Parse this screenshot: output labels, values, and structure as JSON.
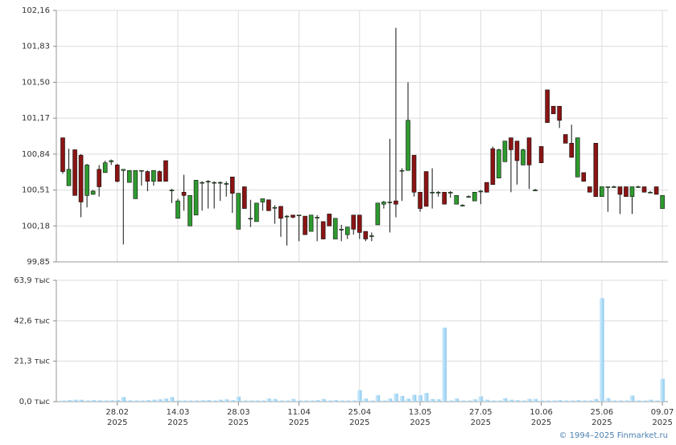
{
  "chart_data": {
    "type": "candlestick",
    "categories": [
      null,
      null,
      null,
      null,
      null,
      null,
      null,
      null,
      null,
      "28.02",
      null,
      null,
      null,
      null,
      null,
      null,
      null,
      null,
      null,
      "14.03",
      null,
      null,
      null,
      null,
      null,
      null,
      null,
      null,
      null,
      "28.03",
      null,
      null,
      null,
      null,
      null,
      null,
      null,
      null,
      null,
      "11.04",
      null,
      null,
      null,
      null,
      null,
      null,
      null,
      null,
      null,
      "25.04",
      null,
      null,
      null,
      null,
      null,
      null,
      null,
      null,
      null,
      "13.05",
      null,
      null,
      null,
      null,
      null,
      null,
      null,
      null,
      null,
      "27.05",
      null,
      null,
      null,
      null,
      null,
      null,
      null,
      null,
      null,
      "10.06",
      null,
      null,
      null,
      null,
      null,
      null,
      null,
      null,
      null,
      "25.06",
      null,
      null,
      null,
      null,
      null,
      null,
      null,
      null,
      null,
      "09.07"
    ],
    "year": "2025",
    "open": [
      100.99,
      100.55,
      100.88,
      100.83,
      100.46,
      100.47,
      100.7,
      100.67,
      100.77,
      100.74,
      100.69,
      100.58,
      100.43,
      100.69,
      100.68,
      100.59,
      100.68,
      100.78,
      100.51,
      100.25,
      100.49,
      100.18,
      100.28,
      100.58,
      100.59,
      100.58,
      100.58,
      100.57,
      100.63,
      100.15,
      100.54,
      100.25,
      100.22,
      100.4,
      100.42,
      100.35,
      100.36,
      100.27,
      100.28,
      100.28,
      100.27,
      100.13,
      100.26,
      100.22,
      100.29,
      100.06,
      100.15,
      100.1,
      100.28,
      100.28,
      100.13,
      100.09,
      100.19,
      100.38,
      100.4,
      100.41,
      100.69,
      100.69,
      100.83,
      100.49,
      100.68,
      100.49,
      100.49,
      100.49,
      100.49,
      100.38,
      100.37,
      100.45,
      100.41,
      100.5,
      100.58,
      100.89,
      100.62,
      100.77,
      100.99,
      100.96,
      100.74,
      100.99,
      100.51,
      100.91,
      101.43,
      101.28,
      101.28,
      101.02,
      100.94,
      100.63,
      100.67,
      100.54,
      100.94,
      100.45,
      100.54,
      100.54,
      100.54,
      100.54,
      100.45,
      100.54,
      100.54,
      100.49,
      100.54,
      100.34
    ],
    "high": [
      100.99,
      100.89,
      100.88,
      100.84,
      100.75,
      100.51,
      100.74,
      100.78,
      100.79,
      100.75,
      100.7,
      100.69,
      100.69,
      100.69,
      100.69,
      100.69,
      100.69,
      100.78,
      100.52,
      100.43,
      100.65,
      100.46,
      100.6,
      100.59,
      100.6,
      100.59,
      100.59,
      100.59,
      100.63,
      100.48,
      100.54,
      100.42,
      100.39,
      100.43,
      100.42,
      100.37,
      100.36,
      100.28,
      100.28,
      100.28,
      100.27,
      100.28,
      100.28,
      100.22,
      100.29,
      100.25,
      100.19,
      100.17,
      100.28,
      100.28,
      100.13,
      100.12,
      100.39,
      100.41,
      100.98,
      102.0,
      100.71,
      101.5,
      100.83,
      100.49,
      100.68,
      100.71,
      100.5,
      100.49,
      100.5,
      100.46,
      100.38,
      100.46,
      100.49,
      100.51,
      100.58,
      100.91,
      100.89,
      100.96,
      100.99,
      100.96,
      100.89,
      100.99,
      100.52,
      100.91,
      101.43,
      101.28,
      101.28,
      101.02,
      101.11,
      100.99,
      100.67,
      100.54,
      100.94,
      100.54,
      100.54,
      100.55,
      100.54,
      100.54,
      100.54,
      100.55,
      100.54,
      100.5,
      100.54,
      100.46
    ],
    "low": [
      100.66,
      100.55,
      100.46,
      100.26,
      100.35,
      100.47,
      100.45,
      100.67,
      100.74,
      100.58,
      100.01,
      100.58,
      100.43,
      100.55,
      100.5,
      100.55,
      100.59,
      100.59,
      100.39,
      100.25,
      100.32,
      100.18,
      100.28,
      100.32,
      100.34,
      100.34,
      100.41,
      100.45,
      100.3,
      100.15,
      100.34,
      100.17,
      100.22,
      100.32,
      100.32,
      100.2,
      100.08,
      100.0,
      100.25,
      100.04,
      100.1,
      100.13,
      100.04,
      100.06,
      100.18,
      100.06,
      100.04,
      100.06,
      100.1,
      100.06,
      100.04,
      100.04,
      100.19,
      100.34,
      100.12,
      100.26,
      100.41,
      100.69,
      100.45,
      100.31,
      100.36,
      100.34,
      100.45,
      100.38,
      100.44,
      100.38,
      100.36,
      100.44,
      100.41,
      100.38,
      100.49,
      100.56,
      100.62,
      100.77,
      100.49,
      100.56,
      100.74,
      100.52,
      100.5,
      100.76,
      101.13,
      101.21,
      101.08,
      100.94,
      100.81,
      100.63,
      100.59,
      100.49,
      100.45,
      100.45,
      100.31,
      100.53,
      100.29,
      100.45,
      100.29,
      100.53,
      100.49,
      100.48,
      100.47,
      100.34
    ],
    "close": [
      100.68,
      100.7,
      100.46,
      100.4,
      100.74,
      100.5,
      100.54,
      100.76,
      100.78,
      100.59,
      100.7,
      100.69,
      100.69,
      100.69,
      100.59,
      100.69,
      100.59,
      100.59,
      100.51,
      100.41,
      100.46,
      100.46,
      100.6,
      100.58,
      100.59,
      100.58,
      100.58,
      100.57,
      100.48,
      100.48,
      100.34,
      100.25,
      100.39,
      100.43,
      100.32,
      100.35,
      100.25,
      100.27,
      100.26,
      100.28,
      100.1,
      100.28,
      100.26,
      100.06,
      100.18,
      100.25,
      100.15,
      100.17,
      100.15,
      100.12,
      100.06,
      100.09,
      100.39,
      100.4,
      100.4,
      100.38,
      100.69,
      101.15,
      100.49,
      100.34,
      100.36,
      100.49,
      100.49,
      100.38,
      100.49,
      100.46,
      100.37,
      100.45,
      100.49,
      100.5,
      100.49,
      100.56,
      100.88,
      100.96,
      100.88,
      100.78,
      100.88,
      100.74,
      100.51,
      100.76,
      101.13,
      101.21,
      101.15,
      100.94,
      100.81,
      100.99,
      100.59,
      100.49,
      100.45,
      100.54,
      100.54,
      100.54,
      100.47,
      100.45,
      100.54,
      100.54,
      100.49,
      100.49,
      100.47,
      100.46
    ],
    "up_color": "#2f9a2f",
    "down_color": "#8b1414",
    "ylim": [
      99.85,
      102.16
    ],
    "yticks": [
      {
        "value": 99.85,
        "label": "99,85"
      },
      {
        "value": 100.18,
        "label": "100,18"
      },
      {
        "value": 100.51,
        "label": "100,51"
      },
      {
        "value": 100.84,
        "label": "100,84"
      },
      {
        "value": 101.17,
        "label": "101,17"
      },
      {
        "value": 101.5,
        "label": "101,50"
      },
      {
        "value": 101.83,
        "label": "101,83"
      },
      {
        "value": 102.16,
        "label": "102,16"
      }
    ],
    "grid": true,
    "volume": {
      "type": "bar",
      "color": "#8ecbf0",
      "values": [
        0.6,
        0.8,
        1.0,
        1.0,
        0.6,
        0.8,
        0.7,
        0.6,
        0.7,
        0.8,
        2.4,
        0.7,
        0.6,
        0.6,
        0.8,
        1.0,
        1.2,
        1.6,
        2.4,
        0.6,
        0.6,
        0.6,
        0.6,
        0.7,
        0.8,
        0.6,
        1.0,
        1.2,
        0.8,
        2.6,
        0.6,
        0.6,
        0.6,
        0.6,
        1.6,
        1.4,
        0.6,
        0.6,
        1.4,
        0.6,
        0.6,
        0.6,
        0.8,
        1.4,
        0.6,
        0.8,
        0.6,
        0.6,
        0.6,
        6.0,
        1.6,
        0.6,
        3.4,
        0.6,
        1.6,
        4.2,
        3.0,
        1.6,
        3.6,
        3.4,
        4.6,
        1.4,
        1.2,
        39.0,
        0.6,
        1.6,
        0.6,
        0.6,
        1.2,
        2.8,
        1.0,
        0.6,
        0.6,
        1.8,
        1.0,
        0.8,
        0.6,
        1.4,
        1.4,
        0.6,
        0.6,
        0.6,
        0.8,
        0.6,
        0.6,
        0.8,
        0.6,
        0.6,
        1.4,
        54.5,
        1.8,
        0.6,
        0.6,
        0.6,
        3.2,
        0.6,
        0.6,
        1.0,
        0.6,
        12.0
      ],
      "ylim": [
        0,
        63.9
      ],
      "yticks": [
        {
          "value": 0,
          "label": "0,0 тыс"
        },
        {
          "value": 21.3,
          "label": "21,3 тыс"
        },
        {
          "value": 42.6,
          "label": "42,6 тыс"
        },
        {
          "value": 63.9,
          "label": "63,9 тыс"
        }
      ]
    },
    "credit": "© 1994–2025 Finmarket.ru"
  }
}
